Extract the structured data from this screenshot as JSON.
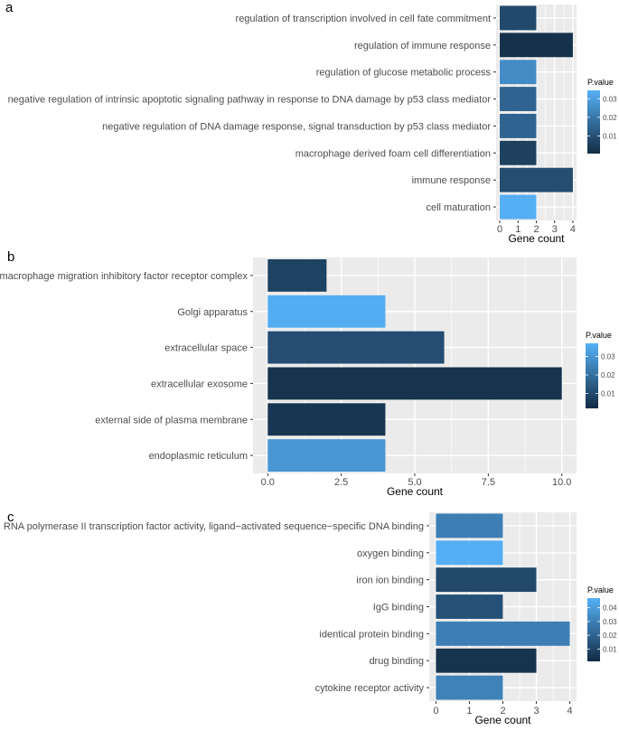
{
  "chart_data": [
    {
      "panel": "a",
      "type": "bar",
      "orientation": "horizontal",
      "categories": [
        "regulation of transcription involved in cell fate commitment",
        "regulation of immune response",
        "regulation of glucose metabolic process",
        "negative regulation of intrinsic apoptotic signaling pathway in response to DNA damage by p53 class mediator",
        "negative regulation of DNA damage response, signal transduction by p53 class mediator",
        "macrophage derived foam cell differentiation",
        "immune response",
        "cell maturation"
      ],
      "values": [
        2,
        4,
        2,
        2,
        2,
        2,
        4,
        2
      ],
      "pvalues": [
        0.008,
        0.002,
        0.025,
        0.015,
        0.015,
        0.006,
        0.009,
        0.034
      ],
      "xlabel": "Gene count",
      "xlim": [
        -0.2,
        4.2
      ],
      "ticks": [
        0,
        1,
        2,
        3,
        4
      ],
      "tick_labels": [
        "0",
        "1",
        "2",
        "3",
        "4"
      ],
      "legend": {
        "title": "P.value",
        "range": [
          0.0005,
          0.0345
        ],
        "ticks": [
          0.01,
          0.02,
          0.03
        ],
        "tick_labels": [
          "0.01",
          "0.02",
          "0.03"
        ]
      }
    },
    {
      "panel": "b",
      "type": "bar",
      "orientation": "horizontal",
      "categories": [
        "macrophage migration inhibitory factor receptor complex",
        "Golgi apparatus",
        "extracellular space",
        "extracellular exosome",
        "external side of plasma membrane",
        "endoplasmic reticulum"
      ],
      "values": [
        2,
        4,
        6,
        10,
        4,
        4
      ],
      "pvalues": [
        0.008,
        0.036,
        0.011,
        0.004,
        0.005,
        0.03
      ],
      "xlabel": "Gene count",
      "xlim": [
        -0.5,
        10.5
      ],
      "ticks": [
        0,
        2.5,
        5,
        7.5,
        10
      ],
      "tick_labels": [
        "0.0",
        "2.5",
        "5.0",
        "7.5",
        "10.0"
      ],
      "legend": {
        "title": "P.value",
        "range": [
          0.002,
          0.037
        ],
        "ticks": [
          0.01,
          0.02,
          0.03
        ],
        "tick_labels": [
          "0.01",
          "0.02",
          "0.03"
        ]
      }
    },
    {
      "panel": "c",
      "type": "bar",
      "orientation": "horizontal",
      "categories": [
        "RNA polymerase II transcription factor activity, ligand−activated sequence−specific DNA binding",
        "oxygen binding",
        "iron ion binding",
        "IgG binding",
        "identical protein binding",
        "drug binding",
        "cytokine receptor activity"
      ],
      "values": [
        2,
        2,
        3,
        2,
        4,
        3,
        2
      ],
      "pvalues": [
        0.03,
        0.046,
        0.011,
        0.014,
        0.03,
        0.004,
        0.031
      ],
      "xlabel": "Gene count",
      "xlim": [
        -0.2,
        4.2
      ],
      "ticks": [
        0,
        1,
        2,
        3,
        4
      ],
      "tick_labels": [
        "0",
        "1",
        "2",
        "3",
        "4"
      ],
      "legend": {
        "title": "P.value",
        "range": [
          0.001,
          0.047
        ],
        "ticks": [
          0.01,
          0.02,
          0.03,
          0.04
        ],
        "tick_labels": [
          "0.01",
          "0.02",
          "0.03",
          "0.04"
        ]
      }
    }
  ],
  "colors": {
    "panel_bg": "#ebebeb",
    "grid": "#ffffff",
    "low": "#132B43",
    "high": "#56B1F7"
  }
}
